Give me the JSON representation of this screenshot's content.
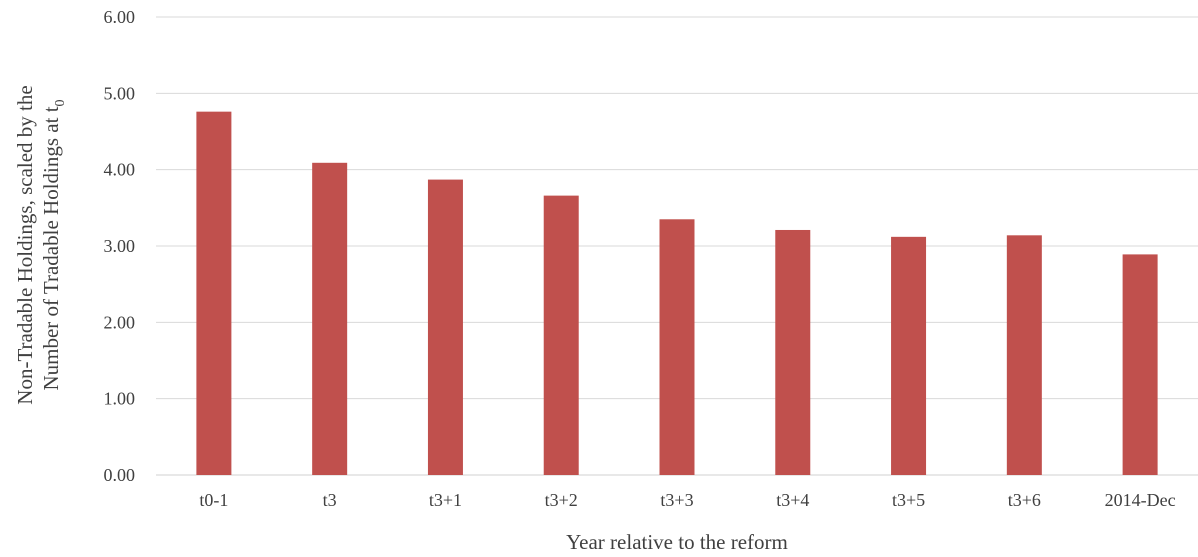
{
  "chart_data": {
    "type": "bar",
    "categories": [
      "t0-1",
      "t3",
      "t3+1",
      "t3+2",
      "t3+3",
      "t3+4",
      "t3+5",
      "t3+6",
      "2014-Dec"
    ],
    "values": [
      4.76,
      4.09,
      3.87,
      3.66,
      3.35,
      3.21,
      3.12,
      3.14,
      2.89
    ],
    "title": "",
    "xlabel": "Year relative to the reform",
    "ylabel_line1": "Non-Tradable Holdings, scaled by the",
    "ylabel_line2_main": "Number of Tradable Holdings at t",
    "ylabel_line2_sub": "0",
    "ylim": [
      0,
      6
    ],
    "yticks": [
      "0.00",
      "1.00",
      "2.00",
      "3.00",
      "4.00",
      "5.00",
      "6.00"
    ],
    "grid": true,
    "legend": "none",
    "colors": {
      "bar": "#c0504d",
      "grid": "#d9d9d9",
      "text": "#404040"
    }
  }
}
